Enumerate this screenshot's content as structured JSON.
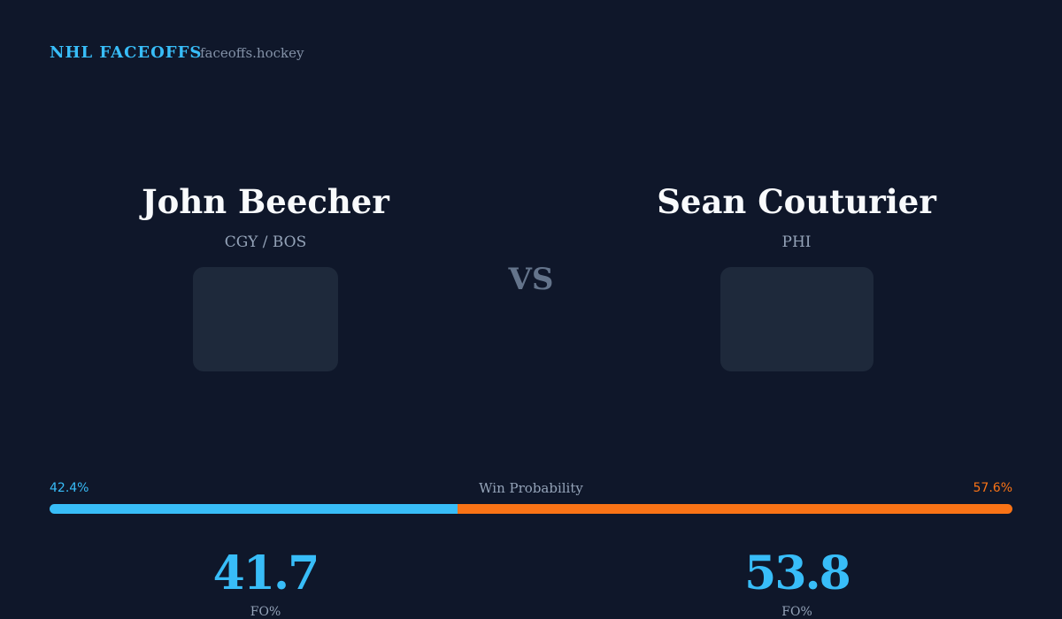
{
  "header": {
    "brand": "NHL FACEOFFS",
    "site": "faceoffs.hockey"
  },
  "players": [
    {
      "name": "John Beecher",
      "team": "CGY / BOS",
      "stat": {
        "value": 41.7,
        "label": "FO%"
      }
    },
    {
      "name": "Sean Couturier",
      "team": "PHI",
      "stat": {
        "value": 53.8,
        "label": "FO%"
      }
    }
  ],
  "vs": "VS",
  "win_probability": {
    "label": "Win Probability",
    "left": {
      "value": 42.4,
      "label": "42.4%",
      "color": "#38bdf8"
    },
    "right": {
      "value": 57.6,
      "label": "57.6%",
      "color": "#f97316"
    }
  }
}
